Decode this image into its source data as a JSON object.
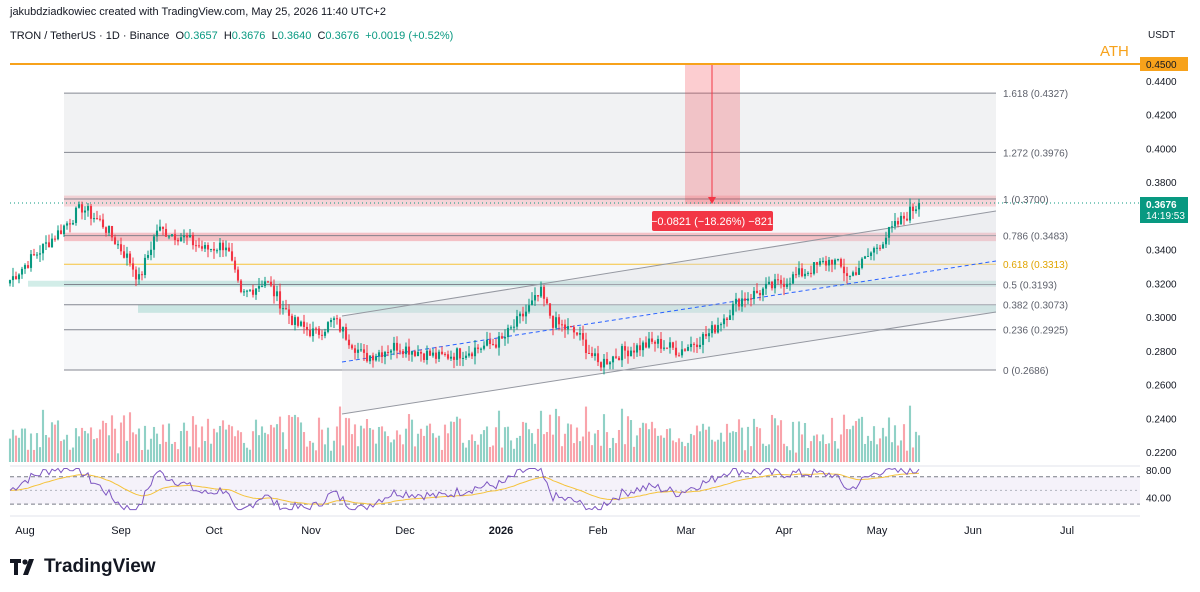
{
  "header": {
    "credit": "jakubdziadkowiec created with TradingView.com, May 25, 2026 11:40 UTC+2",
    "symbol": "TRON / TetherUS · 1D · Binance",
    "open_label": "O",
    "open": "0.3657",
    "high_label": "H",
    "high": "0.3676",
    "low_label": "L",
    "low": "0.3640",
    "close_label": "C",
    "close": "0.3676",
    "change": "+0.0019 (+0.52%)"
  },
  "price_axis": {
    "currency": "USDT",
    "ticks": [
      "0.4400",
      "0.4200",
      "0.4000",
      "0.3800",
      "0.3600",
      "0.3400",
      "0.3200",
      "0.3000",
      "0.2800",
      "0.2600",
      "0.2400",
      "0.2200"
    ],
    "last_price": "0.3676",
    "countdown": "14:19:53",
    "ath_label": "ATH",
    "ath_price": "0.4500"
  },
  "rsi_axis": {
    "ticks": [
      "80.00",
      "40.00"
    ]
  },
  "time_axis": {
    "ticks": [
      "Aug",
      "Sep",
      "Oct",
      "Nov",
      "Dec",
      "2026",
      "Feb",
      "Mar",
      "Apr",
      "May",
      "Jun",
      "Jul"
    ]
  },
  "fib_levels": [
    {
      "level": "1.618",
      "price": 0.4327,
      "label": "1.618 (0.4327)"
    },
    {
      "level": "1.272",
      "price": 0.3976,
      "label": "1.272 (0.3976)"
    },
    {
      "level": "1",
      "price": 0.37,
      "label": "1 (0.3700)"
    },
    {
      "level": "0.786",
      "price": 0.3483,
      "label": "0.786 (0.3483)"
    },
    {
      "level": "0.618",
      "price": 0.3313,
      "label": "0.618 (0.3313)"
    },
    {
      "level": "0.5",
      "price": 0.3193,
      "label": "0.5 (0.3193)"
    },
    {
      "level": "0.382",
      "price": 0.3073,
      "label": "0.382 (0.3073)"
    },
    {
      "level": "0.236",
      "price": 0.2925,
      "label": "0.236 (0.2925)"
    },
    {
      "level": "0",
      "price": 0.2686,
      "label": "0 (0.2686)"
    }
  ],
  "measure": {
    "label": "−0.0821 (−18.26%) −821"
  },
  "colors": {
    "up": "#089981",
    "down": "#f23645",
    "ath": "#f7a21b",
    "rsi": "#7e57c2",
    "rsi_ma": "#f5c33b",
    "golden": "#f5c33b",
    "measure": "#f23645"
  },
  "brand": {
    "name": "TradingView"
  },
  "chart_data": {
    "type": "candlestick",
    "ylim": [
      0.205,
      0.458
    ],
    "xrange": [
      "2025-07-25",
      "2026-07-20"
    ],
    "anchors": [
      [
        "2025-07-25",
        0.322
      ],
      [
        "2025-08-10",
        0.35
      ],
      [
        "2025-08-18",
        0.365
      ],
      [
        "2025-08-25",
        0.355
      ],
      [
        "2025-09-03",
        0.333
      ],
      [
        "2025-09-06",
        0.322
      ],
      [
        "2025-09-12",
        0.352
      ],
      [
        "2025-09-20",
        0.348
      ],
      [
        "2025-09-28",
        0.34
      ],
      [
        "2025-10-05",
        0.343
      ],
      [
        "2025-10-10",
        0.312
      ],
      [
        "2025-10-18",
        0.322
      ],
      [
        "2025-10-28",
        0.296
      ],
      [
        "2025-11-04",
        0.29
      ],
      [
        "2025-11-10",
        0.298
      ],
      [
        "2025-11-20",
        0.276
      ],
      [
        "2025-12-01",
        0.283
      ],
      [
        "2025-12-15",
        0.276
      ],
      [
        "2025-12-25",
        0.28
      ],
      [
        "2026-01-05",
        0.286
      ],
      [
        "2026-01-18",
        0.314
      ],
      [
        "2026-01-22",
        0.297
      ],
      [
        "2026-01-30",
        0.29
      ],
      [
        "2026-02-06",
        0.272
      ],
      [
        "2026-02-15",
        0.28
      ],
      [
        "2026-02-25",
        0.285
      ],
      [
        "2026-03-05",
        0.28
      ],
      [
        "2026-03-15",
        0.29
      ],
      [
        "2026-03-25",
        0.31
      ],
      [
        "2026-04-05",
        0.318
      ],
      [
        "2026-04-15",
        0.326
      ],
      [
        "2026-04-25",
        0.334
      ],
      [
        "2026-05-01",
        0.324
      ],
      [
        "2026-05-08",
        0.338
      ],
      [
        "2026-05-14",
        0.35
      ],
      [
        "2026-05-24",
        0.3676
      ]
    ],
    "rsi_ticks": [
      80,
      40
    ]
  }
}
